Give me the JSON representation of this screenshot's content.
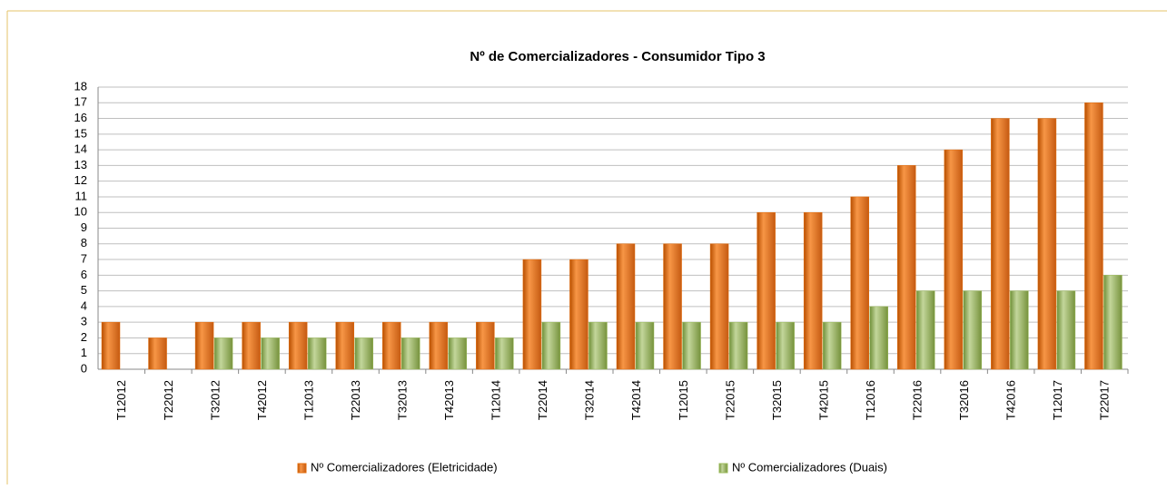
{
  "chart_data": {
    "type": "bar",
    "title": "Nº de Comercializadores - Consumidor  Tipo 3",
    "categories": [
      "T12012",
      "T22012",
      "T32012",
      "T42012",
      "T12013",
      "T22013",
      "T32013",
      "T42013",
      "T12014",
      "T22014",
      "T32014",
      "T42014",
      "T12015",
      "T22015",
      "T32015",
      "T42015",
      "T12016",
      "T22016",
      "T32016",
      "T42016",
      "T12017",
      "T22017"
    ],
    "series": [
      {
        "name": "Nº Comercializadores (Eletricidade)",
        "color": "#e46c0a",
        "values": [
          3,
          2,
          3,
          3,
          3,
          3,
          3,
          3,
          3,
          7,
          7,
          8,
          8,
          8,
          10,
          10,
          11,
          13,
          14,
          16,
          16,
          17
        ]
      },
      {
        "name": "Nº Comercializadores (Duais)",
        "color": "#9bbb59",
        "values": [
          null,
          null,
          2,
          2,
          2,
          2,
          2,
          2,
          2,
          3,
          3,
          3,
          3,
          3,
          3,
          3,
          4,
          5,
          5,
          5,
          5,
          6
        ]
      }
    ],
    "ylim": [
      0,
      18
    ],
    "yticks": [
      0,
      1,
      2,
      3,
      4,
      5,
      6,
      7,
      8,
      9,
      10,
      11,
      12,
      13,
      14,
      15,
      16,
      17,
      18
    ],
    "grid": true,
    "legend": "bottom"
  }
}
